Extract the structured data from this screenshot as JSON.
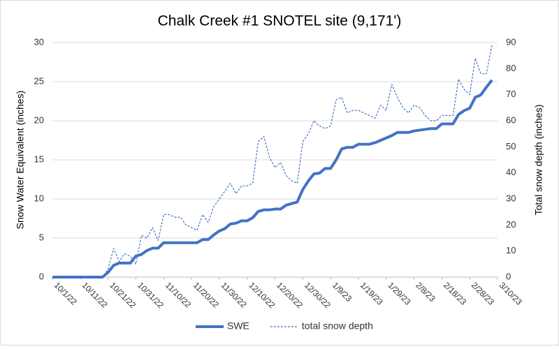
{
  "chart_data": {
    "type": "line",
    "title": "Chalk Creek #1 SNOTEL site (9,171')",
    "y_label": "Snow Water Equivalent (inches)",
    "y2_label": "Total snow depth (inches)",
    "x": [
      "10/1/22",
      "10/3/22",
      "10/5/22",
      "10/7/22",
      "10/9/22",
      "10/11/22",
      "10/13/22",
      "10/15/22",
      "10/17/22",
      "10/19/22",
      "10/21/22",
      "10/23/22",
      "10/25/22",
      "10/27/22",
      "10/29/22",
      "10/31/22",
      "11/2/22",
      "11/4/22",
      "11/6/22",
      "11/8/22",
      "11/10/22",
      "11/12/22",
      "11/14/22",
      "11/16/22",
      "11/18/22",
      "11/20/22",
      "11/22/22",
      "11/24/22",
      "11/26/22",
      "11/28/22",
      "11/30/22",
      "12/2/22",
      "12/4/22",
      "12/6/22",
      "12/8/22",
      "12/10/22",
      "12/12/22",
      "12/14/22",
      "12/16/22",
      "12/18/22",
      "12/20/22",
      "12/22/22",
      "12/24/22",
      "12/26/22",
      "12/28/22",
      "12/30/22",
      "1/1/23",
      "1/3/23",
      "1/5/23",
      "1/7/23",
      "1/9/23",
      "1/11/23",
      "1/13/23",
      "1/15/23",
      "1/17/23",
      "1/19/23",
      "1/21/23",
      "1/23/23",
      "1/25/23",
      "1/27/23",
      "1/29/23",
      "1/31/23",
      "2/2/23",
      "2/4/23",
      "2/6/23",
      "2/8/23",
      "2/10/23",
      "2/12/23",
      "2/14/23",
      "2/16/23",
      "2/18/23",
      "2/20/23",
      "2/22/23",
      "2/24/23",
      "2/26/23",
      "2/28/23",
      "3/2/23",
      "3/4/23",
      "3/6/23",
      "3/8/23"
    ],
    "series": [
      {
        "name": "SWE",
        "color": "#4472c4",
        "line_style": "solid",
        "axis": "y",
        "values": [
          0,
          0,
          0,
          0,
          0,
          0,
          0,
          0,
          0,
          0,
          0.6,
          1.5,
          1.8,
          1.8,
          1.8,
          2.7,
          2.9,
          3.4,
          3.7,
          3.7,
          4.4,
          4.4,
          4.4,
          4.4,
          4.4,
          4.4,
          4.4,
          4.8,
          4.8,
          5.4,
          5.9,
          6.2,
          6.8,
          6.9,
          7.2,
          7.2,
          7.6,
          8.4,
          8.6,
          8.6,
          8.7,
          8.7,
          9.2,
          9.4,
          9.6,
          11.2,
          12.3,
          13.2,
          13.3,
          13.9,
          13.9,
          15.0,
          16.4,
          16.6,
          16.6,
          17.0,
          17.0,
          17.0,
          17.2,
          17.5,
          17.8,
          18.1,
          18.5,
          18.5,
          18.5,
          18.7,
          18.8,
          18.9,
          19.0,
          19.0,
          19.6,
          19.6,
          19.6,
          20.8,
          21.3,
          21.6,
          23.0,
          23.3,
          24.3,
          25.2
        ]
      },
      {
        "name": "total snow depth",
        "color": "#4472c4",
        "line_style": "dashed",
        "axis": "y2",
        "values": [
          0,
          0,
          0,
          0,
          0,
          0,
          0,
          0,
          0,
          0,
          3,
          11,
          6,
          9,
          8,
          5,
          16,
          15,
          19,
          14,
          24,
          24,
          23,
          23,
          20,
          19,
          18,
          24,
          21,
          27,
          30,
          33,
          36,
          32,
          35,
          35,
          36,
          52,
          54,
          46,
          42,
          44,
          39,
          37,
          36,
          52,
          55,
          60,
          58,
          57,
          58,
          68,
          69,
          63,
          64,
          64,
          63,
          62,
          61,
          66,
          64,
          74,
          69,
          65,
          63,
          66,
          65,
          62,
          60,
          60,
          62,
          62,
          62,
          76,
          72,
          70,
          84,
          78,
          78,
          89
        ]
      }
    ],
    "xlim": [
      "10/1/22",
      "3/10/23"
    ],
    "xticks": [
      "10/1/22",
      "10/11/22",
      "10/21/22",
      "10/31/22",
      "11/10/22",
      "11/20/22",
      "11/30/22",
      "12/10/22",
      "12/20/22",
      "12/30/22",
      "1/9/23",
      "1/19/23",
      "1/29/23",
      "2/8/23",
      "2/18/23",
      "2/28/23",
      "3/10/23"
    ],
    "ylim": [
      0,
      30
    ],
    "yticks": [
      0,
      5,
      10,
      15,
      20,
      25,
      30
    ],
    "y2lim": [
      0,
      90
    ],
    "y2ticks": [
      0,
      10,
      20,
      30,
      40,
      50,
      60,
      70,
      80,
      90
    ],
    "grid": true,
    "legend": "bottom"
  }
}
